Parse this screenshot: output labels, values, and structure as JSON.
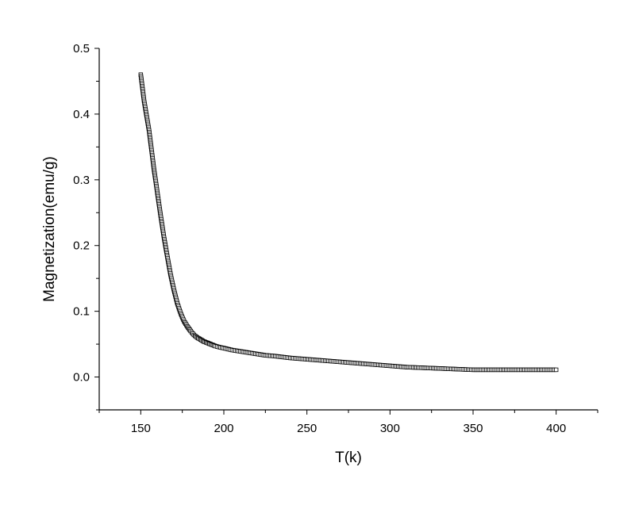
{
  "chart_data": {
    "type": "scatter",
    "title": "",
    "xlabel": "T(k)",
    "ylabel": "Magnetization(emu/g)",
    "xlim": [
      125,
      425
    ],
    "ylim": [
      -0.05,
      0.5
    ],
    "x_ticks": [
      150,
      200,
      250,
      300,
      350,
      400
    ],
    "x_tick_labels": [
      "150",
      "200",
      "250",
      "300",
      "350",
      "400"
    ],
    "y_ticks": [
      0.0,
      0.1,
      0.2,
      0.3,
      0.4,
      0.5
    ],
    "y_tick_labels": [
      "0.0",
      "0.1",
      "0.2",
      "0.3",
      "0.4",
      "0.5"
    ],
    "grid": false,
    "legend": "none",
    "marker": "open-square",
    "marker_color": "#000000",
    "series": [
      {
        "x": [
          150,
          151,
          152,
          153,
          154,
          155,
          156,
          157,
          158,
          159,
          160,
          162,
          164,
          166,
          168,
          170,
          172,
          174,
          176,
          178,
          180,
          182,
          184,
          186,
          188,
          190,
          192,
          195,
          198,
          200,
          205,
          210,
          215,
          220,
          225,
          230,
          240,
          250,
          260,
          270,
          280,
          290,
          300,
          310,
          320,
          330,
          340,
          350,
          360,
          370,
          380,
          390,
          400
        ],
        "y": [
          0.46,
          0.44,
          0.42,
          0.405,
          0.39,
          0.375,
          0.355,
          0.335,
          0.315,
          0.298,
          0.28,
          0.245,
          0.212,
          0.183,
          0.155,
          0.132,
          0.112,
          0.097,
          0.085,
          0.077,
          0.07,
          0.064,
          0.06,
          0.057,
          0.054,
          0.052,
          0.05,
          0.047,
          0.045,
          0.044,
          0.041,
          0.039,
          0.037,
          0.035,
          0.033,
          0.032,
          0.029,
          0.027,
          0.025,
          0.023,
          0.021,
          0.019,
          0.017,
          0.015,
          0.014,
          0.013,
          0.012,
          0.011,
          0.011,
          0.011,
          0.011,
          0.011,
          0.011
        ]
      }
    ]
  }
}
